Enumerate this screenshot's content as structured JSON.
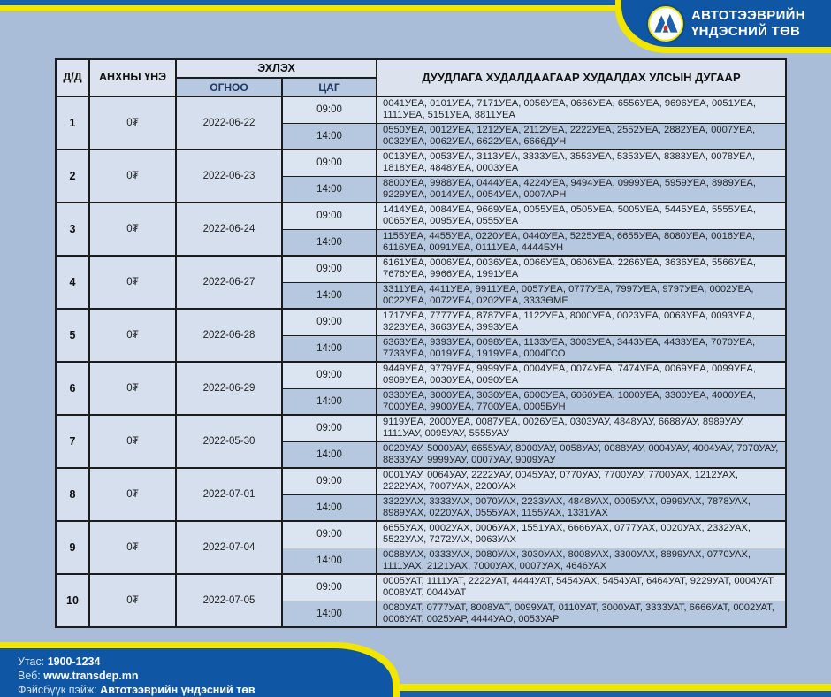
{
  "colors": {
    "brand_blue": "#0f57a5",
    "stripe_blue": "#1d60a8",
    "accent_yellow": "#f2e600",
    "page_bg": "#a9bdd8"
  },
  "header": {
    "org_line1": "АВТОТЭЭВРИЙН",
    "org_line2": "ҮНДЭСНИЙ ТӨВ"
  },
  "table": {
    "headers": {
      "num": "Д/Д",
      "price": "АНХНЫ ҮНЭ",
      "start": "ЭХЛЭХ",
      "date": "ОГНОО",
      "time": "ЦАГ",
      "plates": "ДУУДЛАГА ХУДАЛДААГААР ХУДАЛДАХ УЛСЫН ДУГААР"
    },
    "rows": [
      {
        "num": "1",
        "price": "0₮",
        "date": "2022-06-22",
        "sessions": [
          {
            "time": "09:00",
            "plates": "0041УЕА, 0101УЕА, 7171УЕА, 0056УЕА, 0666УЕА, 6556УЕА, 9696УЕА, 0051УЕА, 1111УЕА, 5151УЕА, 8811УЕА"
          },
          {
            "time": "14:00",
            "plates": "0550УЕА, 0012УЕА, 1212УЕА, 2112УЕА, 2222УЕА, 2552УЕА, 2882УЕА, 0007УЕА, 0032УЕА, 0062УЕА, 6622УЕА, 6666ДУН"
          }
        ]
      },
      {
        "num": "2",
        "price": "0₮",
        "date": "2022-06-23",
        "sessions": [
          {
            "time": "09:00",
            "plates": "0013УЕА, 0053УЕА, 3113УЕА, 3333УЕА, 3553УЕА, 5353УЕА, 8383УЕА, 0078УЕА, 1818УЕА, 4848УЕА, 0003УЕА"
          },
          {
            "time": "14:00",
            "plates": "8800УЕА, 9988УЕА, 0444УЕА, 4224УЕА, 9494УЕА, 0999УЕА, 5959УЕА, 8989УЕА, 9229УЕА, 0014УЕА, 0054УЕА, 0007АРН"
          }
        ]
      },
      {
        "num": "3",
        "price": "0₮",
        "date": "2022-06-24",
        "sessions": [
          {
            "time": "09:00",
            "plates": "1414УЕА, 0084УЕА, 9669УЕА, 0055УЕА, 0505УЕА, 5005УЕА, 5445УЕА, 5555УЕА, 0065УЕА, 0095УЕА, 0555УЕА"
          },
          {
            "time": "14:00",
            "plates": "1155УЕА, 4455УЕА, 0220УЕА, 0440УЕА, 5225УЕА, 6655УЕА, 8080УЕА, 0016УЕА, 6116УЕА, 0091УЕА, 0111УЕА, 4444БУН"
          }
        ]
      },
      {
        "num": "4",
        "price": "0₮",
        "date": "2022-06-27",
        "sessions": [
          {
            "time": "09:00",
            "plates": "6161УЕА, 0006УЕА, 0036УЕА, 0066УЕА, 0606УЕА, 2266УЕА, 3636УЕА, 5566УЕА, 7676УЕА, 9966УЕА, 1991УЕА"
          },
          {
            "time": "14:00",
            "plates": "3311УЕА, 4411УЕА, 9911УЕА, 0057УЕА, 0777УЕА, 7997УЕА, 9797УЕА, 0002УЕА, 0022УЕА, 0072УЕА, 0202УЕА, 3333ӨМЕ"
          }
        ]
      },
      {
        "num": "5",
        "price": "0₮",
        "date": "2022-06-28",
        "sessions": [
          {
            "time": "09:00",
            "plates": "1717УЕА, 7777УЕА, 8787УЕА, 1122УЕА, 8000УЕА, 0023УЕА, 0063УЕА, 0093УЕА, 3223УЕА, 3663УЕА, 3993УЕА"
          },
          {
            "time": "14:00",
            "plates": "6363УЕА, 9393УЕА, 0098УЕА, 1133УЕА, 3003УЕА, 3443УЕА, 4433УЕА, 7070УЕА, 7733УЕА, 0019УЕА, 1919УЕА, 0004ГСО"
          }
        ]
      },
      {
        "num": "6",
        "price": "0₮",
        "date": "2022-06-29",
        "sessions": [
          {
            "time": "09:00",
            "plates": "9449УЕА, 9779УЕА, 9999УЕА, 0004УЕА, 0074УЕА, 7474УЕА, 0069УЕА, 0099УЕА, 0909УЕА, 0030УЕА, 0090УЕА"
          },
          {
            "time": "14:00",
            "plates": "0330УЕА, 3000УЕА, 3030УЕА, 6000УЕА, 6060УЕА, 1000УЕА, 3300УЕА, 4000УЕА, 7000УЕА, 9900УЕА, 7700УЕА, 0005БУН"
          }
        ]
      },
      {
        "num": "7",
        "price": "0₮",
        "date": "2022-05-30",
        "sessions": [
          {
            "time": "09:00",
            "plates": "9119УЕА, 2000УЕА, 0087УЕА, 0026УЕА, 0303УАУ, 4848УАУ, 6688УАУ, 8989УАУ, 1111УАУ, 0095УАУ, 5555УАУ"
          },
          {
            "time": "14:00",
            "plates": "0020УАУ, 5000УАУ, 6655УАУ, 8000УАУ, 0058УАУ, 0088УАУ, 0004УАУ, 4004УАУ, 7070УАУ, 8833УАУ, 9999УАУ, 0007УАУ, 9009УАУ"
          }
        ]
      },
      {
        "num": "8",
        "price": "0₮",
        "date": "2022-07-01",
        "sessions": [
          {
            "time": "09:00",
            "plates": "0001УАУ, 0064УАУ, 2222УАУ, 0045УАУ, 0770УАУ, 7700УАУ, 7700УАХ, 1212УАХ, 2222УАХ, 7007УАХ, 2200УАХ"
          },
          {
            "time": "14:00",
            "plates": "3322УАХ, 3333УАХ, 0070УАХ, 2233УАХ, 4848УАХ, 0005УАХ, 0999УАХ, 7878УАХ, 8989УАХ, 0220УАХ, 0555УАХ, 1155УАХ, 1331УАХ"
          }
        ]
      },
      {
        "num": "9",
        "price": "0₮",
        "date": "2022-07-04",
        "sessions": [
          {
            "time": "09:00",
            "plates": "6655УАХ, 0002УАХ, 0006УАХ, 1551УАХ, 6666УАХ, 0777УАХ, 0020УАХ, 2332УАХ, 5522УАХ, 7272УАХ, 0063УАХ"
          },
          {
            "time": "14:00",
            "plates": "0088УАХ, 0333УАХ, 0080УАХ, 3030УАХ, 8008УАХ, 3300УАХ, 8899УАХ, 0770УАХ, 1111УАХ, 2121УАХ, 7000УАХ, 0007УАХ, 4646УАХ"
          }
        ]
      },
      {
        "num": "10",
        "price": "0₮",
        "date": "2022-07-05",
        "sessions": [
          {
            "time": "09:00",
            "plates": "0005УАТ, 1111УАТ, 2222УАТ, 4444УАТ, 5454УАХ, 5454УАТ, 6464УАТ, 9229УАТ, 0004УАТ, 0008УАТ, 0044УАТ"
          },
          {
            "time": "14:00",
            "plates": "0080УАТ, 0777УАТ, 8008УАТ, 0099УАТ, 0110УАТ, 3000УАТ, 3333УАТ, 6666УАТ, 0002УАТ, 0006УАТ, 0025УАР, 4444УАО, 0053УАР"
          }
        ]
      }
    ]
  },
  "footer": {
    "phone_label": "Утас:",
    "phone_value": "1900-1234",
    "web_label": "Веб:",
    "web_value": "www.transdep.mn",
    "facebook_label": "Фэйсбүүк пэйж:",
    "facebook_value": "Автотээврийн үндэсний төв"
  }
}
